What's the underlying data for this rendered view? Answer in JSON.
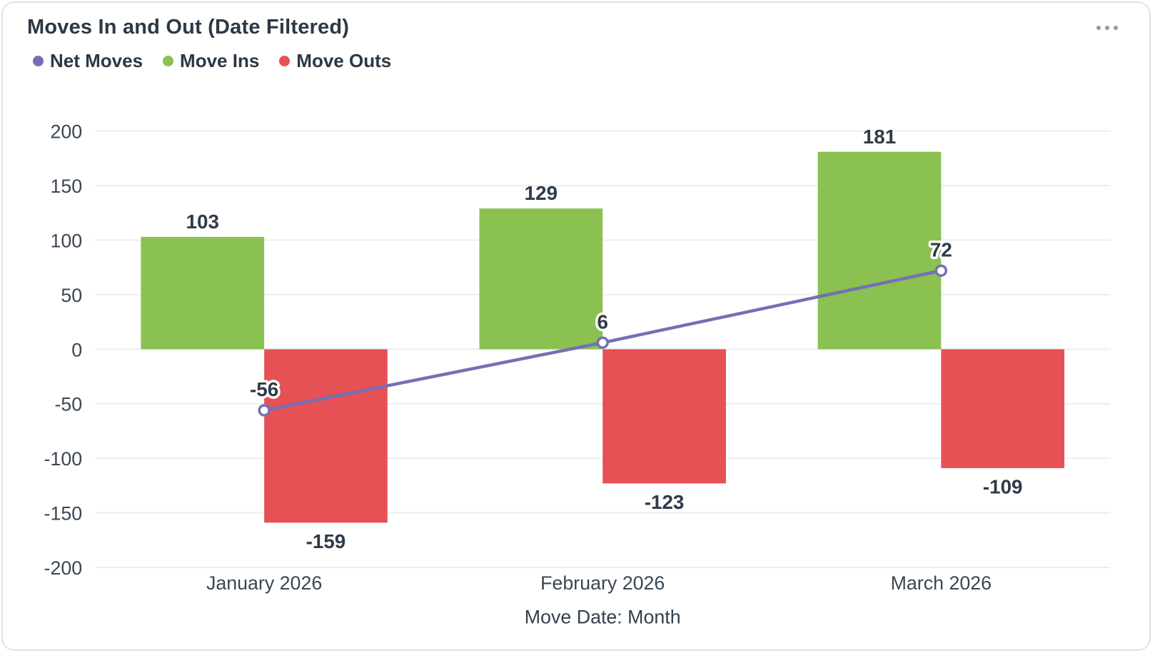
{
  "header": {
    "title": "Moves In and Out (Date Filtered)",
    "menu_icon": "ellipsis-horizontal"
  },
  "legend": {
    "items": [
      {
        "label": "Net Moves",
        "color": "#7470B4"
      },
      {
        "label": "Move Ins",
        "color": "#8AC150"
      },
      {
        "label": "Move Outs",
        "color": "#E65156"
      }
    ]
  },
  "chart_data": {
    "type": "bar",
    "subtype": "bar-line-combo",
    "title": "Moves In and Out (Date Filtered)",
    "categories": [
      "January 2026",
      "February 2026",
      "March 2026"
    ],
    "series": [
      {
        "name": "Net Moves",
        "type": "line",
        "color": "#7470B4",
        "values": [
          -56,
          6,
          72
        ]
      },
      {
        "name": "Move Ins",
        "type": "bar",
        "color": "#8AC150",
        "values": [
          103,
          129,
          181
        ]
      },
      {
        "name": "Move Outs",
        "type": "bar",
        "color": "#E65156",
        "values": [
          -159,
          -123,
          -109
        ]
      }
    ],
    "xlabel": "Move Date: Month",
    "ylabel": "",
    "ylim": [
      -200,
      200
    ],
    "ytick_step": 50,
    "grid": true,
    "legend_position": "top-left",
    "data_labels": true
  },
  "colors": {
    "grid_line": "#ECEDEF",
    "tick_text": "#3B4654",
    "bar_label_text": "#2F3B47",
    "axis_title_text": "#343F4C",
    "label_halo": "#FFFFFF",
    "card_border": "#DFE3E7",
    "marker_fill": "#FFFFFF"
  }
}
